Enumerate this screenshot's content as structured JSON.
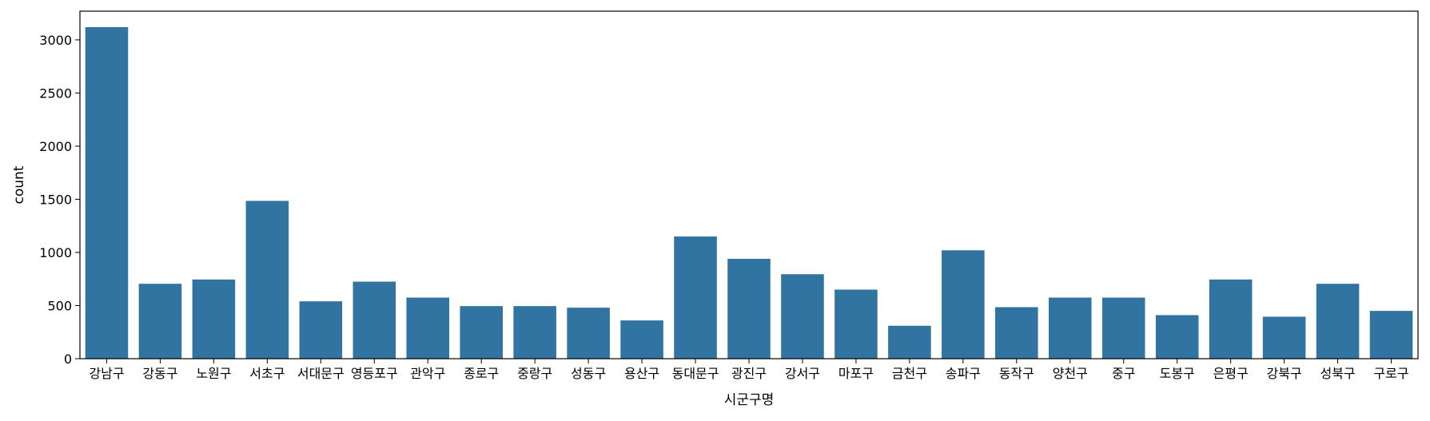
{
  "chart_data": {
    "type": "bar",
    "title": "",
    "xlabel": "시군구명",
    "ylabel": "count",
    "ylim": [
      0,
      3270
    ],
    "yticks": [
      0,
      500,
      1000,
      1500,
      2000,
      2500,
      3000
    ],
    "grid": false,
    "legend": "none",
    "bar_color": "#3274a1",
    "categories": [
      "강남구",
      "강동구",
      "노원구",
      "서초구",
      "서대문구",
      "영등포구",
      "관악구",
      "종로구",
      "중랑구",
      "성동구",
      "용산구",
      "동대문구",
      "광진구",
      "강서구",
      "마포구",
      "금천구",
      "송파구",
      "동작구",
      "양천구",
      "중구",
      "도봉구",
      "은평구",
      "강북구",
      "성북구",
      "구로구"
    ],
    "values": [
      3120,
      705,
      745,
      1485,
      540,
      725,
      575,
      495,
      495,
      480,
      360,
      1150,
      940,
      795,
      650,
      310,
      1020,
      485,
      575,
      575,
      410,
      745,
      395,
      705,
      450
    ]
  }
}
